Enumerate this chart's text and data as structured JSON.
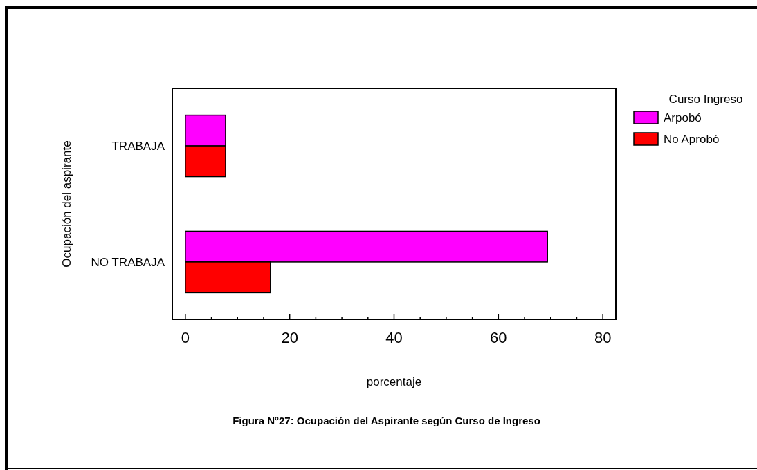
{
  "chart_data": {
    "type": "bar",
    "orientation": "horizontal",
    "xlabel": "porcentaje",
    "ylabel": "Ocupación del aspirante",
    "legend_title": "Curso Ingreso",
    "legend": "top right",
    "grid": false,
    "categories": [
      "TRABAJA",
      "NO TRABAJA"
    ],
    "series": [
      {
        "name": "Arpobó",
        "color": "#ff00ff",
        "values": [
          7.7,
          69.4
        ]
      },
      {
        "name": "No Aprobó",
        "color": "#ff0000",
        "values": [
          7.7,
          16.3
        ]
      }
    ],
    "xlim": [
      -2.5,
      82.5
    ],
    "xticks": [
      0,
      {
        "value": 5,
        "label": null
      },
      {
        "value": 10,
        "label": null
      },
      {
        "value": 15,
        "label": null
      },
      20,
      {
        "value": 25,
        "label": null
      },
      {
        "value": 30,
        "label": null
      },
      {
        "value": 35,
        "label": null
      },
      40,
      {
        "value": 45,
        "label": null
      },
      {
        "value": 50,
        "label": null
      },
      {
        "value": 55,
        "label": null
      },
      60,
      {
        "value": 65,
        "label": null
      },
      {
        "value": 70,
        "label": null
      },
      {
        "value": 75,
        "label": null
      },
      80
    ],
    "annotations": [
      "Figura N°27: Ocupación del Aspirante según Curso de Ingreso"
    ]
  }
}
